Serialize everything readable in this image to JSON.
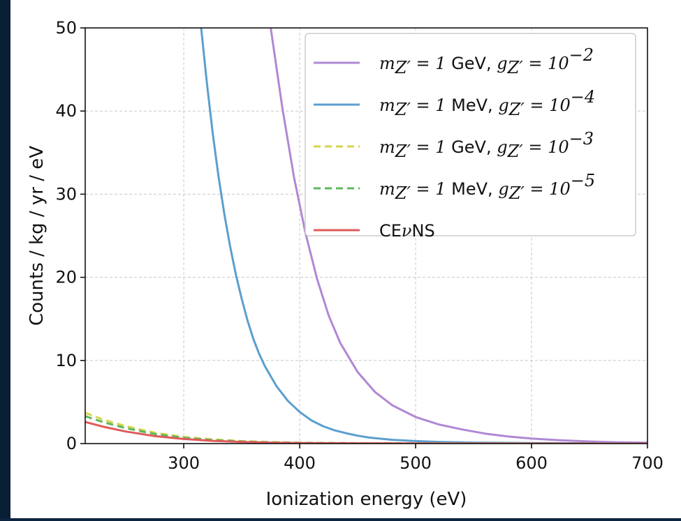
{
  "chart_data": {
    "type": "line",
    "xlabel": "Ionization energy (eV)",
    "ylabel": "Counts / kg / yr / eV",
    "xlim": [
      215,
      700
    ],
    "ylim": [
      0,
      50
    ],
    "x_ticks": [
      300,
      400,
      500,
      600,
      700
    ],
    "x_tick_labels": [
      "300",
      "400",
      "500",
      "600",
      "700"
    ],
    "y_ticks": [
      0,
      10,
      20,
      30,
      40,
      50
    ],
    "y_tick_labels": [
      "0",
      "10",
      "20",
      "30",
      "40",
      "50"
    ],
    "grid": true,
    "legend_position": "top-right",
    "series": [
      {
        "name": "m_{Z'} = 1 GeV, g_{Z'} = 10^{-2}",
        "legend": {
          "pre": "m",
          "pre_sub": "Z′",
          "eq1": " = 1 ",
          "unit": "GeV",
          "mid": ", ",
          "g": "g",
          "g_sub": "Z′",
          "eq2": " = 10",
          "exp": "−2"
        },
        "color": "#b088d4",
        "dash": false,
        "x": [
          375,
          385,
          395,
          405,
          415,
          425,
          435,
          450,
          465,
          480,
          500,
          520,
          540,
          560,
          580,
          600,
          625,
          650,
          675,
          700
        ],
        "y": [
          50,
          40.4,
          32.1,
          25.3,
          19.8,
          15.4,
          12.1,
          8.6,
          6.2,
          4.6,
          3.2,
          2.3,
          1.7,
          1.2,
          0.85,
          0.6,
          0.4,
          0.25,
          0.15,
          0.1
        ]
      },
      {
        "name": "m_{Z'} = 1 MeV, g_{Z'} = 10^{-4}",
        "legend": {
          "pre": "m",
          "pre_sub": "Z′",
          "eq1": " = 1 ",
          "unit": "MeV",
          "mid": ", ",
          "g": "g",
          "g_sub": "Z′",
          "eq2": " = 10",
          "exp": "−4"
        },
        "color": "#5b9fcd",
        "dash": false,
        "x": [
          315,
          320,
          325,
          330,
          335,
          340,
          345,
          350,
          355,
          360,
          365,
          370,
          380,
          390,
          400,
          410,
          420,
          430,
          440,
          450,
          460,
          480,
          500,
          520,
          550,
          600,
          650,
          700
        ],
        "y": [
          50,
          43.3,
          37.3,
          32.1,
          27.6,
          23.7,
          20.3,
          17.4,
          14.8,
          12.6,
          10.8,
          9.3,
          6.9,
          5.1,
          3.8,
          2.8,
          2.1,
          1.6,
          1.25,
          0.95,
          0.72,
          0.45,
          0.3,
          0.2,
          0.12,
          0.06,
          0.03,
          0.02
        ]
      },
      {
        "name": "m_{Z'} = 1 GeV, g_{Z'} = 10^{-3}",
        "legend": {
          "pre": "m",
          "pre_sub": "Z′",
          "eq1": " = 1 ",
          "unit": "GeV",
          "mid": ", ",
          "g": "g",
          "g_sub": "Z′",
          "eq2": " = 10",
          "exp": "−3"
        },
        "color": "#d6d44e",
        "dash": true,
        "x": [
          215,
          230,
          250,
          275,
          300,
          325,
          350,
          375,
          400,
          450,
          500,
          550,
          600,
          650,
          700
        ],
        "y": [
          3.7,
          2.9,
          2.1,
          1.3,
          0.8,
          0.5,
          0.3,
          0.18,
          0.1,
          0.05,
          0.03,
          0.02,
          0.01,
          0.01,
          0.0
        ]
      },
      {
        "name": "m_{Z'} = 1 MeV, g_{Z'} = 10^{-5}",
        "legend": {
          "pre": "m",
          "pre_sub": "Z′",
          "eq1": " = 1 ",
          "unit": "MeV",
          "mid": ", ",
          "g": "g",
          "g_sub": "Z′",
          "eq2": " = 10",
          "exp": "−5"
        },
        "color": "#5cb85c",
        "dash": true,
        "x": [
          215,
          230,
          250,
          275,
          300,
          325,
          350,
          375,
          400,
          450,
          500,
          550,
          600,
          650,
          700
        ],
        "y": [
          3.3,
          2.6,
          1.85,
          1.15,
          0.7,
          0.42,
          0.25,
          0.15,
          0.09,
          0.04,
          0.02,
          0.01,
          0.01,
          0.0,
          0.0
        ]
      },
      {
        "name": "CEνNS",
        "legend": {
          "text_pre": "CE",
          "nu": "ν",
          "text_post": "NS"
        },
        "color": "#e05a5a",
        "dash": false,
        "x": [
          215,
          230,
          250,
          275,
          300,
          325,
          350,
          375,
          400,
          450,
          500,
          550,
          600,
          650,
          700
        ],
        "y": [
          2.6,
          2.05,
          1.45,
          0.9,
          0.55,
          0.33,
          0.2,
          0.12,
          0.07,
          0.03,
          0.02,
          0.01,
          0.0,
          0.0,
          0.0
        ]
      }
    ]
  }
}
